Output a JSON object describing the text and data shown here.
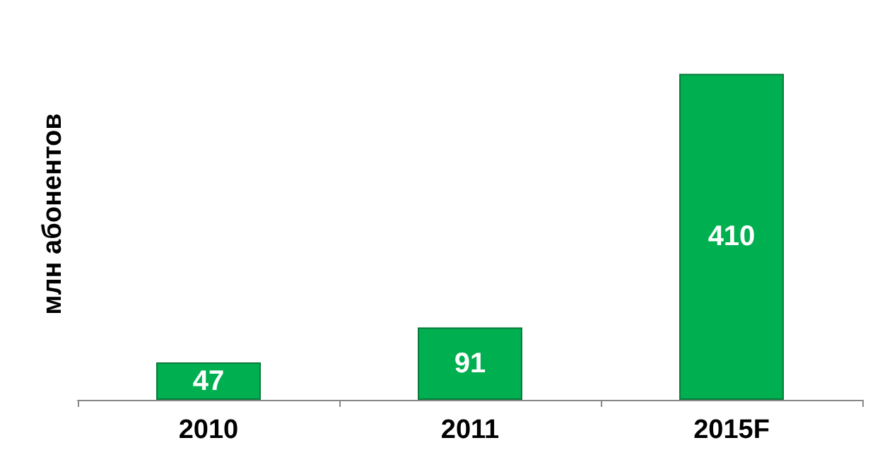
{
  "chart_data": {
    "type": "bar",
    "ylabel": "млн абонентов",
    "categories": [
      "2010",
      "2011",
      "2015F"
    ],
    "values": [
      47,
      91,
      410
    ],
    "color": "#00b050",
    "data_labels": true
  }
}
